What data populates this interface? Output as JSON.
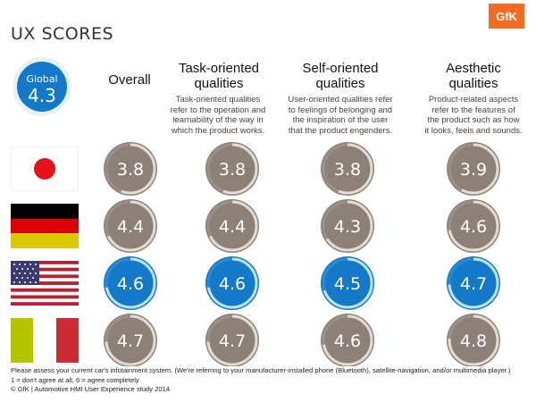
{
  "title": "UX SCORES",
  "logo": "GfK",
  "global": {
    "label": "Global",
    "value": "4.3"
  },
  "columns": [
    {
      "title_lines": [
        "Overall"
      ],
      "desc_lines": []
    },
    {
      "title_lines": [
        "Task-oriented",
        "qualities"
      ],
      "desc_lines": [
        "Task-oriented qualities",
        "refer to the operation and",
        "learnability of the way in",
        "which the product works."
      ]
    },
    {
      "title_lines": [
        "Self-oriented",
        "qualities"
      ],
      "desc_lines": [
        "User-oriented qualities refer",
        "to feelings of belonging and",
        "the inspiration of the user",
        "that the product engenders."
      ]
    },
    {
      "title_lines": [
        "Aesthetic",
        "qualities"
      ],
      "desc_lines": [
        "Product-related aspects",
        "refer to the features of",
        "the product such as how",
        "it looks, feels and sounds."
      ]
    }
  ],
  "chart_data": {
    "type": "table",
    "categories": [
      "Overall",
      "Task-oriented qualities",
      "Self-oriented qualities",
      "Aesthetic qualities"
    ],
    "scale": [
      1,
      6
    ],
    "rows": [
      {
        "flag": "japan-flag",
        "values": [
          3.8,
          3.8,
          3.8,
          3.9
        ],
        "highlight": false
      },
      {
        "flag": "germany-flag",
        "values": [
          4.4,
          4.4,
          4.3,
          4.6
        ],
        "highlight": false
      },
      {
        "flag": "usa-flag",
        "values": [
          4.6,
          4.6,
          4.5,
          4.7
        ],
        "highlight": true
      },
      {
        "flag": "italy-flag",
        "values": [
          4.7,
          4.7,
          4.6,
          4.8
        ],
        "highlight": false
      }
    ]
  },
  "colors": {
    "grey_circle": "#8d8078",
    "blue_circle": "#1479c8",
    "grey_ring": "#e2dcd7",
    "blue_ring": "#bfe5f5",
    "orange": "#f26c21"
  },
  "footer": {
    "line1": "Please assess your current car's infotainment system. (We're referring to your manufacturer-installed phone (Bluetooth), satellite-navigation, and/or multimedia player.)",
    "line2": "1 = don't agree at all, 6 = agree completely",
    "line3": "© GfK | Automotive HMI User Experience study 2014"
  }
}
